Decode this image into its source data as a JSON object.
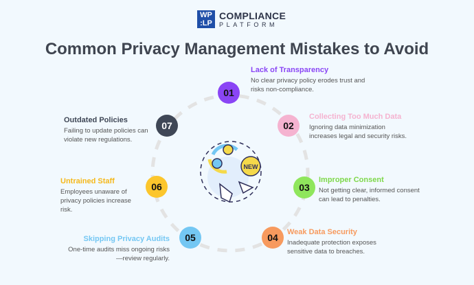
{
  "logo": {
    "box_line1": "WP",
    "box_line2": ":LP",
    "line1": "COMPLIANCE",
    "line2": "PLATFORM"
  },
  "title": "Common Privacy Management Mistakes to Avoid",
  "center_illustration": {
    "icon": "gears-new-hand-icon",
    "badge": "NEW"
  },
  "items": [
    {
      "num": "01",
      "title": "Lack of Transparency",
      "desc": "No clear privacy policy erodes trust and risks non-compliance.",
      "color": "#8a45f5",
      "title_color": "#8a45f5"
    },
    {
      "num": "02",
      "title": "Collecting Too Much Data",
      "desc": "Ignoring data minimization increases legal and security risks.",
      "color": "#f5b3d0",
      "title_color": "#f5b3d0"
    },
    {
      "num": "03",
      "title": "Improper Consent",
      "desc": "Not getting clear, informed consent can lead to penalties.",
      "color": "#8fe65c",
      "title_color": "#7ed84a"
    },
    {
      "num": "04",
      "title": "Weak Data Security",
      "desc": "Inadequate protection exposes sensitive data to breaches.",
      "color": "#f79a5e",
      "title_color": "#f79a5e"
    },
    {
      "num": "05",
      "title": "Skipping Privacy Audits",
      "desc": "One-time audits miss ongoing risks—review regularly.",
      "color": "#74c7f3",
      "title_color": "#74c7f3"
    },
    {
      "num": "06",
      "title": "Untrained Staff",
      "desc": "Employees unaware of privacy policies increase risk.",
      "color": "#fcc62c",
      "title_color": "#f5b81a"
    },
    {
      "num": "07",
      "title": "Outdated Policies",
      "desc": "Failing to update policies can violate new regulations.",
      "color": "#3f4756",
      "title_color": "#3f4756"
    }
  ]
}
